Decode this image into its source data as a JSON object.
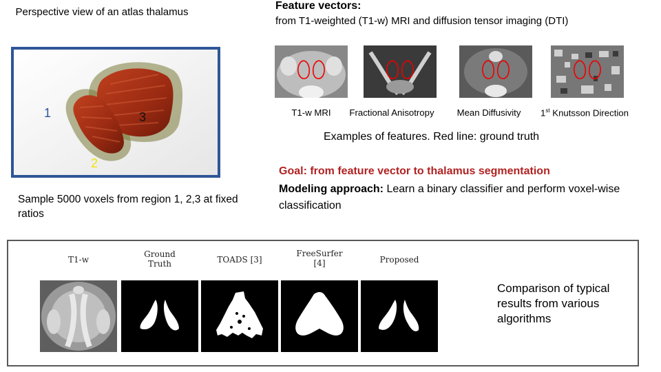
{
  "atlas": {
    "title": "Perspective view of an atlas thalamus",
    "region_labels": [
      "1",
      "2",
      "3"
    ],
    "frame_color": "#2f5597"
  },
  "sampling": {
    "text": "Sample 5000 voxels from region 1, 2,3 at fixed ratios"
  },
  "features": {
    "title": "Feature vectors:",
    "subtitle": "from T1-weighted (T1-w) MRI and diffusion tensor imaging (DTI)",
    "items": [
      {
        "label": "T1-w MRI"
      },
      {
        "label": "Fractional Anisotropy"
      },
      {
        "label": "Mean Diffusivity"
      },
      {
        "label_prefix": "1",
        "label_sup": "st",
        "label_rest": " Knutsson Direction"
      }
    ],
    "caption": "Examples of features. Red line: ground truth"
  },
  "goal": {
    "text": "Goal:  from feature vector to thalamus segmentation",
    "color": "#b22222"
  },
  "modeling": {
    "label": "Modeling approach:",
    "text": " Learn a binary classifier and perform voxel-wise classification"
  },
  "comparison": {
    "columns": [
      {
        "line1": "T1-w",
        "line2": ""
      },
      {
        "line1": "Ground",
        "line2": "Truth"
      },
      {
        "line1": "TOADS [3]",
        "line2": ""
      },
      {
        "line1": "FreeSurfer",
        "line2": "[4]"
      },
      {
        "line1": "Proposed",
        "line2": ""
      }
    ],
    "text": "Comparison of typical results from various algorithms"
  }
}
